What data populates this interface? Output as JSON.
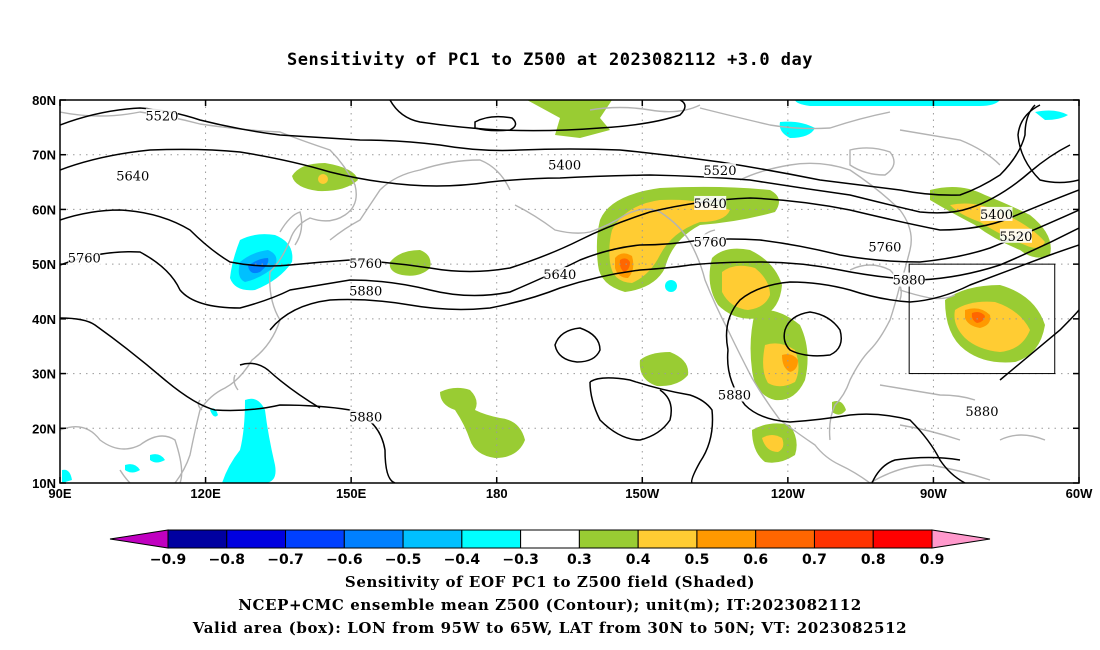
{
  "title": "Sensitivity of PC1 to Z500 at 2023082112 +3.0 day",
  "map": {
    "lon_range": [
      90,
      300
    ],
    "lat_range": [
      10,
      80
    ],
    "x_ticks": [
      {
        "lon": 90,
        "label": "90E"
      },
      {
        "lon": 120,
        "label": "120E"
      },
      {
        "lon": 150,
        "label": "150E"
      },
      {
        "lon": 180,
        "label": "180"
      },
      {
        "lon": 210,
        "label": "150W"
      },
      {
        "lon": 240,
        "label": "120W"
      },
      {
        "lon": 270,
        "label": "90W"
      },
      {
        "lon": 300,
        "label": "60W"
      }
    ],
    "y_ticks": [
      {
        "lat": 80,
        "label": "80N"
      },
      {
        "lat": 70,
        "label": "70N"
      },
      {
        "lat": 60,
        "label": "60N"
      },
      {
        "lat": 50,
        "label": "50N"
      },
      {
        "lat": 40,
        "label": "40N"
      },
      {
        "lat": 30,
        "label": "30N"
      },
      {
        "lat": 20,
        "label": "20N"
      },
      {
        "lat": 10,
        "label": "10N"
      }
    ],
    "grid": "dotted",
    "valid_box": {
      "lon_min": 265,
      "lon_max": 295,
      "lat_min": 30,
      "lat_max": 50
    },
    "contour_labels": [
      {
        "text": "5520",
        "lon": 111,
        "lat": 77
      },
      {
        "text": "5400",
        "lon": 194,
        "lat": 68
      },
      {
        "text": "5520",
        "lon": 226,
        "lat": 67
      },
      {
        "text": "5640",
        "lon": 105,
        "lat": 66
      },
      {
        "text": "5640",
        "lon": 224,
        "lat": 61
      },
      {
        "text": "5400",
        "lon": 283,
        "lat": 59
      },
      {
        "text": "5520",
        "lon": 287,
        "lat": 55
      },
      {
        "text": "5760",
        "lon": 95,
        "lat": 51
      },
      {
        "text": "5760",
        "lon": 153,
        "lat": 50
      },
      {
        "text": "5760",
        "lon": 224,
        "lat": 54
      },
      {
        "text": "5760",
        "lon": 260,
        "lat": 53
      },
      {
        "text": "5640",
        "lon": 193,
        "lat": 48
      },
      {
        "text": "5880",
        "lon": 153,
        "lat": 45
      },
      {
        "text": "5880",
        "lon": 265,
        "lat": 47
      },
      {
        "text": "5880",
        "lon": 153,
        "lat": 22
      },
      {
        "text": "5880",
        "lon": 229,
        "lat": 26
      },
      {
        "text": "5880",
        "lon": 280,
        "lat": 23
      }
    ]
  },
  "colorbar": {
    "labels": [
      "−0.9",
      "−0.8",
      "−0.7",
      "−0.6",
      "−0.5",
      "−0.4",
      "−0.3",
      "0.3",
      "0.4",
      "0.5",
      "0.6",
      "0.7",
      "0.8",
      "0.9"
    ],
    "colors": [
      "#c000c0",
      "#0000a0",
      "#0000e0",
      "#0040ff",
      "#0080ff",
      "#00c0ff",
      "#00ffff",
      "#ffffff",
      "#99cc33",
      "#ffcc33",
      "#ff9900",
      "#ff6600",
      "#ff3300",
      "#ff0000",
      "#ff99cc"
    ]
  },
  "captions": [
    "Sensitivity of EOF PC1 to Z500 field (Shaded)",
    "NCEP+CMC ensemble mean Z500 (Contour); unit(m); IT:2023082112",
    "Valid area (box): LON from 95W to 65W, LAT from 30N to 50N; VT: 2023082512"
  ]
}
